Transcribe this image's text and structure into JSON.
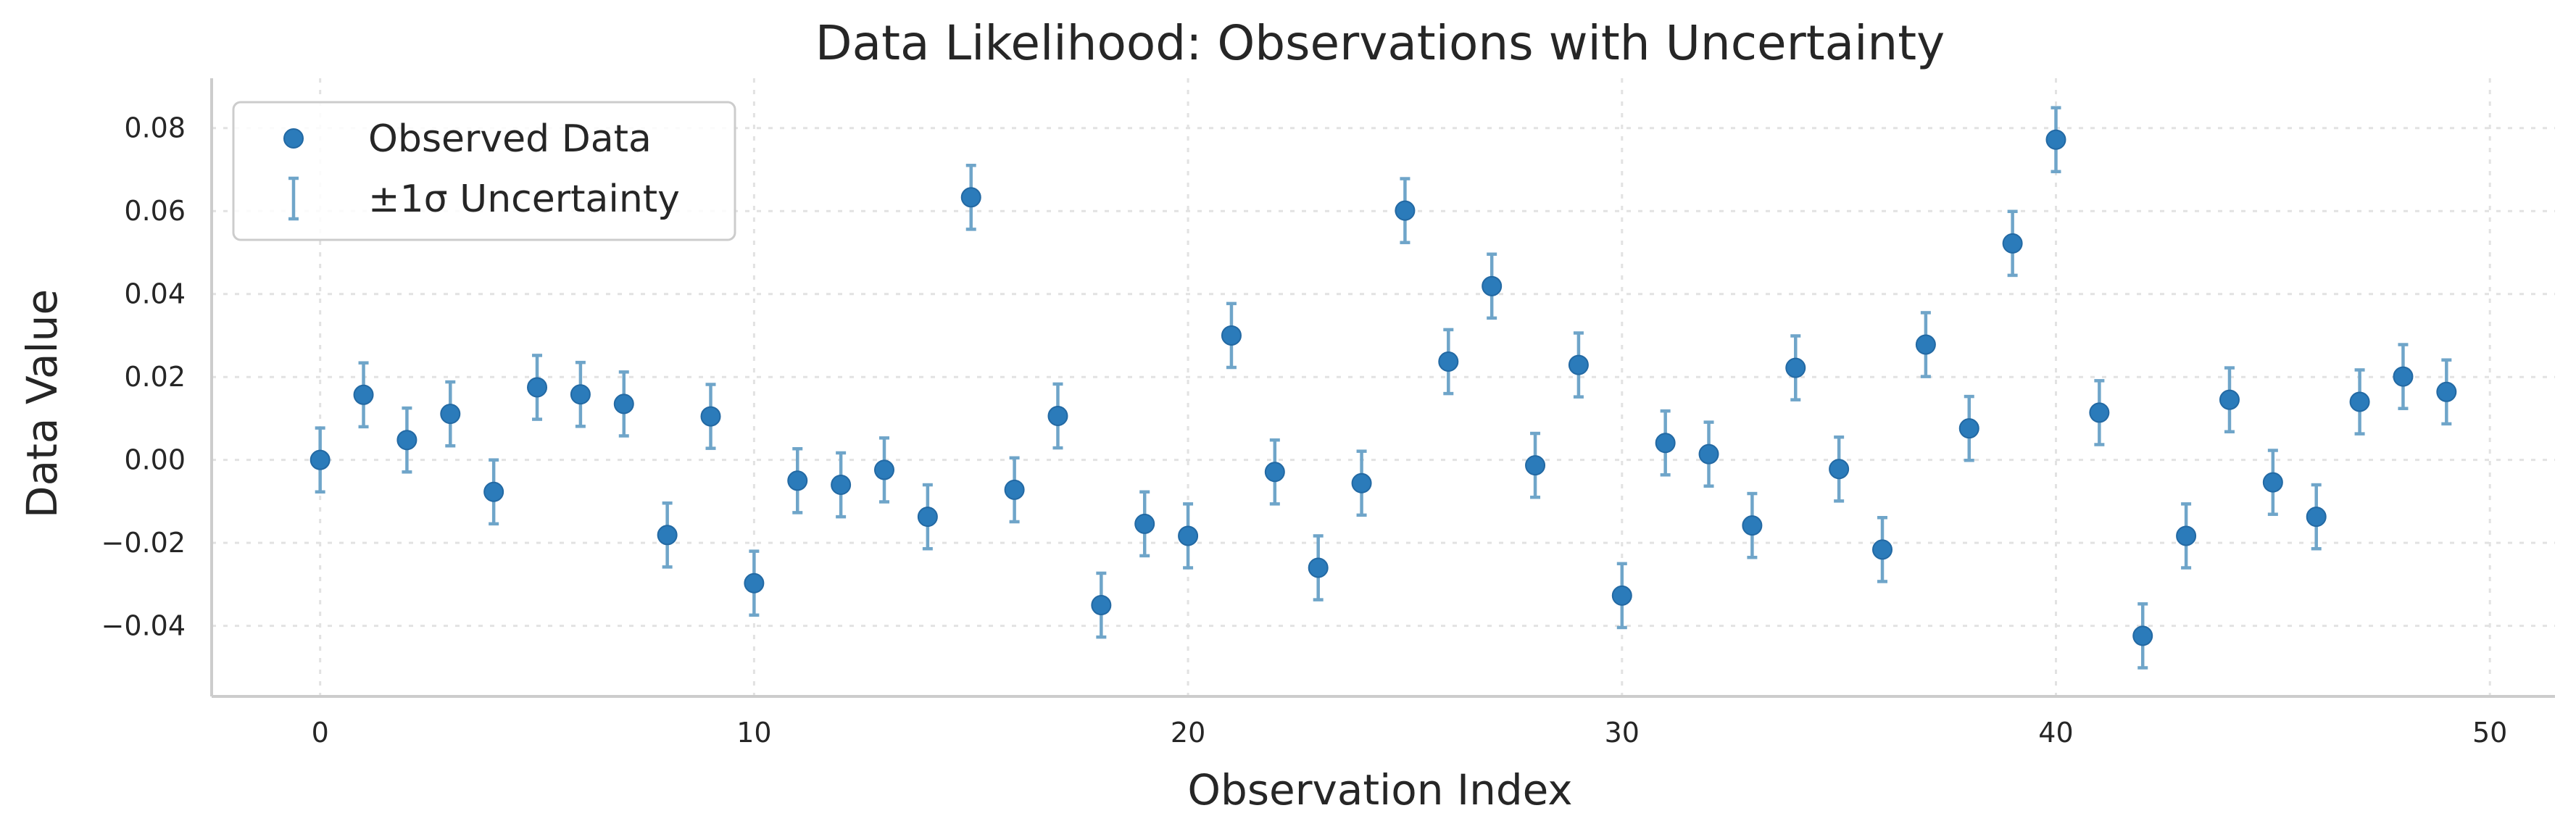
{
  "chart_data": {
    "type": "scatter",
    "title": "Data Likelihood: Observations with Uncertainty",
    "xlabel": "Observation Index",
    "ylabel": "Data Value",
    "xlim": [
      -2.5,
      51.5
    ],
    "ylim": [
      -0.057,
      0.092
    ],
    "xticks": [
      0,
      10,
      20,
      30,
      40,
      50
    ],
    "yticks": [
      -0.04,
      -0.02,
      0.0,
      0.02,
      0.04,
      0.06,
      0.08
    ],
    "ytick_labels": [
      "−0.04",
      "−0.02",
      "0.00",
      "0.02",
      "0.04",
      "0.06",
      "0.08"
    ],
    "grid": true,
    "legend_position": "top-left",
    "uncertainty_sigma": 0.0077,
    "series": [
      {
        "name": "Observed Data",
        "color": "#2b7bba",
        "x": [
          0,
          1,
          2,
          3,
          4,
          5,
          6,
          7,
          8,
          9,
          10,
          11,
          12,
          13,
          14,
          15,
          16,
          17,
          18,
          19,
          20,
          21,
          22,
          23,
          24,
          25,
          26,
          27,
          28,
          29,
          30,
          31,
          32,
          33,
          34,
          35,
          36,
          37,
          38,
          39,
          40,
          41,
          42,
          43,
          44,
          45,
          46,
          47,
          48,
          49
        ],
        "y": [
          0.0,
          0.0157,
          0.0048,
          0.0111,
          -0.0077,
          0.0175,
          0.0158,
          0.0135,
          -0.0181,
          0.0105,
          -0.0297,
          -0.005,
          -0.006,
          -0.0024,
          -0.0137,
          0.0633,
          -0.0072,
          0.0106,
          -0.035,
          -0.0154,
          -0.0183,
          0.03,
          -0.0029,
          -0.026,
          -0.0056,
          0.0601,
          0.0237,
          0.0419,
          -0.0013,
          0.0229,
          -0.0327,
          0.0041,
          0.0014,
          -0.0158,
          0.0222,
          -0.0022,
          -0.0216,
          0.0278,
          0.0076,
          0.0522,
          0.0772,
          0.0114,
          -0.0424,
          -0.0183,
          0.0145,
          -0.0054,
          -0.0137,
          0.014,
          0.0201,
          0.0164
        ]
      }
    ],
    "legend": [
      {
        "label": "Observed Data",
        "marker": "point"
      },
      {
        "label": "±1σ Uncertainty",
        "marker": "errorbar",
        "color": "#6fa5c9"
      }
    ]
  }
}
